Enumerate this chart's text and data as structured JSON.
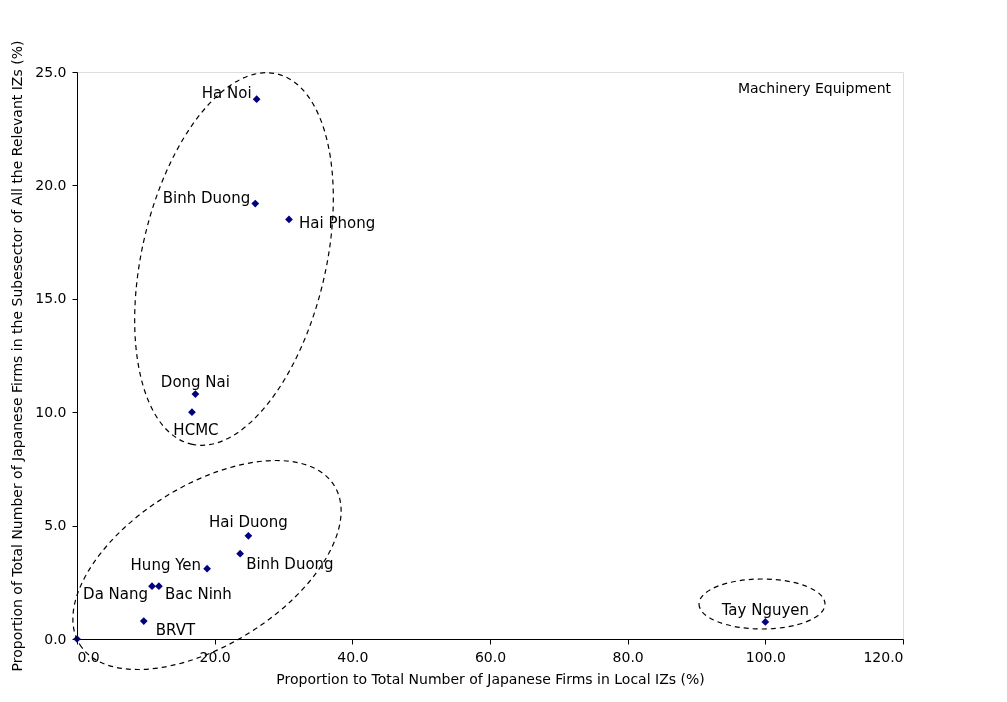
{
  "chart_data": {
    "type": "scatter",
    "xlabel": "Proportion to Total Number of Japanese Firms in Local IZs (%)",
    "ylabel": "Proportion of Total Number of Japanese Firms in the Subesector of All the Relevant IZs (%)",
    "x": [
      26.1,
      25.9,
      30.8,
      17.2,
      16.7,
      24.9,
      23.7,
      18.9,
      10.9,
      11.9,
      9.7,
      0,
      100
    ],
    "series": [
      {
        "color": "#000080",
        "values": [
          23.8,
          19.2,
          18.5,
          10.8,
          10.0,
          4.55,
          3.76,
          3.1,
          2.33,
          2.33,
          0.79,
          0,
          0.75
        ]
      }
    ],
    "marker": "diamond",
    "grid": false,
    "xlim": [
      0,
      120
    ],
    "ylim": [
      0,
      25
    ],
    "xticks": [
      {
        "value": 0,
        "label": "0.0"
      },
      {
        "value": 20,
        "label": "20.0"
      },
      {
        "value": 40,
        "label": "40.0"
      },
      {
        "value": 60,
        "label": "60.0"
      },
      {
        "value": 80,
        "label": "80.0"
      },
      {
        "value": 100,
        "label": "100.0"
      },
      {
        "value": 120,
        "label": "120.0"
      }
    ],
    "yticks": [
      {
        "value": 0,
        "label": "0.0"
      },
      {
        "value": 5,
        "label": "5.0"
      },
      {
        "value": 10,
        "label": "10.0"
      },
      {
        "value": 15,
        "label": "15.0"
      },
      {
        "value": 20,
        "label": "20.0"
      },
      {
        "value": 25,
        "label": "25.0"
      }
    ],
    "annotations": [
      {
        "text": "Ha Noi",
        "x": 26.1,
        "y": 23.8
      },
      {
        "text": "Binh Duong",
        "x": 25.9,
        "y": 19.2
      },
      {
        "text": "Hai Phong",
        "x": 30.8,
        "y": 18.5
      },
      {
        "text": "Dong Nai",
        "x": 17.2,
        "y": 10.8
      },
      {
        "text": "HCMC",
        "x": 16.7,
        "y": 10.0
      },
      {
        "text": "Hai Duong",
        "x": 24.9,
        "y": 4.55
      },
      {
        "text": "Binh Duong",
        "x": 23.7,
        "y": 3.76
      },
      {
        "text": "Hung Yen",
        "x": 18.9,
        "y": 3.1
      },
      {
        "text": "Da Nang",
        "x": 10.9,
        "y": 2.33
      },
      {
        "text": "Bac Ninh",
        "x": 11.9,
        "y": 2.33
      },
      {
        "text": "BRVT",
        "x": 9.7,
        "y": 0.79
      },
      {
        "text": "Tay Nguyen",
        "x": 100,
        "y": 0.75
      },
      "Machinery Equipment"
    ]
  }
}
